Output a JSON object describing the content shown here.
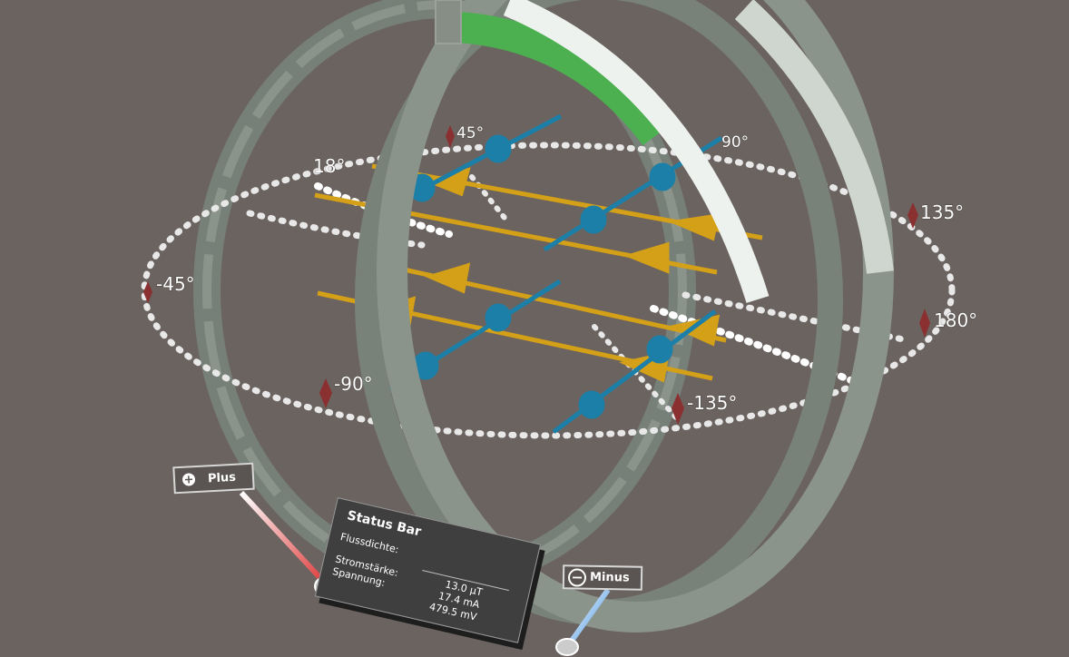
{
  "angle_labels": {
    "a45": "45°",
    "a90": "90°",
    "a135": "135°",
    "a180": "180°",
    "a18": "18°",
    "am45": "-45°",
    "am90": "-90°",
    "am135": "-135°"
  },
  "status_bar": {
    "title": "Status Bar",
    "rows": [
      {
        "label": "Flussdichte:",
        "value": "13.0 µT"
      },
      {
        "label": "Stromstärke:",
        "value": "17.4 mA"
      },
      {
        "label": "Spannung:",
        "value": "479.5 mV"
      }
    ]
  },
  "buttons": {
    "plus_label": "Plus",
    "minus_label": "Minus",
    "plus_icon": "plus-circle-icon",
    "minus_icon": "minus-circle-icon"
  },
  "colors": {
    "background": "#6b635f",
    "coil_highlight": "#4caf50",
    "field_arrow_gold": "#d4a017",
    "current_arrow_blue": "#1b7fa8",
    "marker_red": "#8a3030",
    "plus_slider": "#e04848",
    "minus_slider": "#3e90e0"
  }
}
